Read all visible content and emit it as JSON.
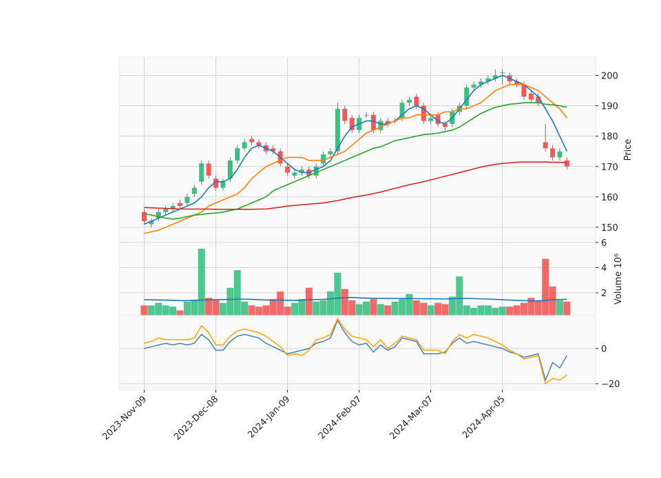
{
  "chart_data": [
    {
      "type": "candlestick",
      "ylabel": "Price",
      "ylim": [
        145,
        206
      ],
      "yticks": [
        150,
        160,
        170,
        180,
        190,
        200
      ],
      "grid": true,
      "up_color": "#3cbf84",
      "down_color": "#f05a5a",
      "x": [
        0,
        2,
        4,
        6,
        8,
        10,
        12,
        14,
        16,
        18,
        20,
        22,
        24,
        26,
        28,
        30,
        32,
        34,
        36,
        38,
        40,
        42,
        44,
        46,
        48,
        50,
        52,
        54,
        56,
        58,
        60,
        62,
        64,
        66,
        68,
        70,
        72,
        74,
        76,
        78,
        80,
        82,
        84,
        86,
        88,
        90,
        92,
        94,
        96,
        98,
        100,
        102,
        104,
        106,
        108,
        110,
        112,
        114,
        116,
        118
      ],
      "open": [
        155,
        151,
        153,
        155,
        156,
        158,
        158,
        161,
        165,
        171,
        166,
        163,
        166,
        172,
        176,
        179,
        178,
        177,
        176,
        175,
        170,
        167,
        168,
        169,
        167,
        171,
        174,
        175,
        189,
        186,
        182,
        187,
        187,
        182,
        185,
        185,
        186,
        191,
        193,
        190,
        185,
        187,
        184,
        184,
        188,
        190,
        196,
        197,
        198,
        199,
        201,
        200,
        198,
        197,
        194,
        193,
        178,
        176,
        173,
        172
      ],
      "high": [
        156,
        153,
        156,
        157,
        158,
        159,
        161,
        164,
        172,
        172,
        167,
        166,
        173,
        177,
        179,
        180,
        179,
        178,
        177,
        176,
        171,
        169,
        170,
        170,
        171,
        175,
        176,
        191,
        190,
        187,
        187,
        188,
        188,
        186,
        186,
        186,
        192,
        193,
        194,
        191,
        187,
        188,
        185,
        189,
        191,
        197,
        198,
        199,
        200,
        202,
        202,
        201,
        199,
        198,
        195,
        194,
        184,
        177,
        176,
        173
      ],
      "low": [
        151,
        150,
        152,
        154,
        155,
        156,
        157,
        160,
        164,
        166,
        162,
        162,
        165,
        171,
        175,
        177,
        176,
        174,
        174,
        170,
        167,
        166,
        167,
        166,
        166,
        170,
        173,
        174,
        184,
        181,
        181,
        186,
        181,
        181,
        183,
        184,
        185,
        190,
        189,
        184,
        184,
        183,
        182,
        183,
        187,
        189,
        195,
        196,
        197,
        198,
        197,
        197,
        196,
        192,
        191,
        190,
        175,
        172,
        172,
        169
      ],
      "close": [
        152,
        152,
        155,
        156,
        157,
        157,
        160,
        163,
        171,
        167,
        163,
        165,
        172,
        176,
        178,
        178,
        177,
        175,
        175,
        171,
        168,
        168,
        169,
        167,
        170,
        174,
        175,
        189,
        185,
        182,
        186,
        187,
        182,
        185,
        184,
        185,
        191,
        192,
        190,
        185,
        186,
        184,
        183,
        188,
        190,
        196,
        197,
        198,
        199,
        200,
        201,
        198,
        197,
        193,
        192,
        191,
        176,
        173,
        175,
        170
      ],
      "series": [
        {
          "color": "#1f77b4",
          "values": [
            151,
            152,
            153,
            154,
            155,
            156,
            157,
            158,
            160,
            163,
            165,
            165,
            166,
            169,
            173,
            176,
            177,
            176,
            175,
            173,
            171,
            169,
            168,
            168,
            169,
            170,
            172,
            176,
            180,
            183,
            184,
            185,
            185,
            184,
            184,
            185,
            187,
            189,
            190,
            189,
            187,
            185,
            184,
            186,
            189,
            192,
            195,
            197,
            198,
            199,
            200,
            199,
            198,
            197,
            195,
            193,
            189,
            185,
            180,
            175
          ]
        },
        {
          "color": "#ff7f0e",
          "values": [
            148,
            148.5,
            149,
            150,
            151,
            152,
            153,
            154,
            155,
            157,
            158,
            159,
            160,
            161,
            163,
            166,
            168,
            170,
            171,
            172,
            173,
            173,
            173,
            172,
            172,
            172,
            173,
            174,
            175,
            177,
            179,
            181,
            182,
            183,
            184,
            185,
            186,
            186,
            187,
            187,
            187,
            187,
            188,
            188,
            189,
            189,
            190,
            191,
            193,
            195,
            196,
            197,
            197,
            197,
            196,
            195,
            193,
            191,
            189,
            186
          ]
        },
        {
          "color": "#2ca02c",
          "values": [
            154.5,
            154,
            153.5,
            153,
            152.7,
            153,
            153.5,
            154,
            154.2,
            154.5,
            154.7,
            155,
            155.5,
            156,
            157,
            158,
            159,
            160,
            162,
            163,
            164,
            165,
            166,
            167,
            168,
            169,
            170,
            171,
            172,
            173,
            174,
            175,
            176,
            176.5,
            177.5,
            178.5,
            179,
            179.5,
            180,
            180.5,
            180.7,
            181,
            181.5,
            182,
            183,
            184.5,
            186,
            187.5,
            188.5,
            189.5,
            190,
            190.5,
            190.7,
            191,
            191,
            191,
            190.5,
            190.3,
            190,
            189.5
          ]
        },
        {
          "color": "#d62728",
          "values": [
            156.5,
            156.4,
            156.3,
            156.2,
            156.1,
            156,
            156,
            156,
            156,
            156,
            155.9,
            155.9,
            155.9,
            155.9,
            155.9,
            155.9,
            156,
            156,
            156.3,
            156.6,
            157,
            157.2,
            157.4,
            157.6,
            157.8,
            158,
            158.4,
            158.8,
            159.3,
            159.8,
            160.2,
            160.6,
            161.1,
            161.6,
            162.2,
            162.8,
            163.4,
            164,
            164.5,
            165,
            165.6,
            166.2,
            166.8,
            167.4,
            168,
            168.6,
            169.2,
            169.8,
            170.3,
            170.7,
            171,
            171.2,
            171.4,
            171.5,
            171.5,
            171.5,
            171.5,
            171.4,
            171.4,
            171.3
          ]
        }
      ]
    },
    {
      "type": "bar",
      "ylabel": "Volume  10⁶",
      "ylim": [
        0.2,
        6
      ],
      "yticks": [
        2,
        4,
        6
      ],
      "grid": true,
      "values": [
        1.0,
        1.0,
        1.2,
        1.0,
        0.9,
        0.6,
        1.3,
        1.4,
        5.5,
        1.6,
        1.4,
        1.2,
        2.4,
        3.8,
        1.3,
        1.0,
        0.9,
        1.0,
        1.5,
        2.1,
        0.9,
        1.2,
        1.5,
        2.4,
        1.3,
        1.4,
        2.1,
        3.6,
        2.3,
        1.4,
        1.1,
        1.3,
        1.5,
        1.1,
        1.0,
        1.3,
        1.5,
        1.9,
        1.4,
        1.2,
        1.0,
        1.2,
        1.1,
        1.7,
        3.3,
        1.0,
        0.8,
        1.0,
        1.0,
        0.8,
        0.9,
        0.9,
        1.0,
        1.2,
        1.6,
        1.4,
        4.7,
        2.5,
        1.4,
        1.3
      ],
      "series": [
        {
          "color": "#1f77b4",
          "values": [
            1.45,
            1.44,
            1.43,
            1.42,
            1.4,
            1.38,
            1.38,
            1.4,
            1.42,
            1.45,
            1.45,
            1.46,
            1.48,
            1.5,
            1.5,
            1.48,
            1.45,
            1.43,
            1.42,
            1.42,
            1.4,
            1.4,
            1.42,
            1.45,
            1.46,
            1.48,
            1.52,
            1.58,
            1.62,
            1.62,
            1.6,
            1.58,
            1.56,
            1.55,
            1.55,
            1.55,
            1.55,
            1.55,
            1.54,
            1.53,
            1.53,
            1.52,
            1.52,
            1.53,
            1.55,
            1.55,
            1.54,
            1.52,
            1.5,
            1.48,
            1.45,
            1.42,
            1.4,
            1.38,
            1.36,
            1.35,
            1.4,
            1.45,
            1.47,
            1.48
          ]
        }
      ]
    },
    {
      "type": "line",
      "ylim": [
        -23.5,
        18.8
      ],
      "yticks": [
        0,
        {
          "value": -20,
          "label": "−20"
        }
      ],
      "grid": true,
      "xlim": [
        -7,
        126
      ],
      "xticks": [
        {
          "value": 0,
          "label": "2023-Nov-09"
        },
        {
          "value": 20,
          "label": "2023-Dec-08"
        },
        {
          "value": 40,
          "label": "2024-Jan-09"
        },
        {
          "value": 60,
          "label": "2024-Feb-07"
        },
        {
          "value": 80,
          "label": "2024-Mar-07"
        },
        {
          "value": 100,
          "label": "2024-Apr-05"
        }
      ],
      "series": [
        {
          "color": "#4682b4",
          "values": [
            0,
            1,
            2,
            3,
            2,
            3,
            2,
            3,
            8,
            5,
            -1,
            -1,
            4,
            7,
            8,
            7,
            6,
            3,
            1,
            -1,
            -3,
            -2,
            -1,
            0,
            3,
            4,
            6,
            16,
            9,
            4,
            2,
            3,
            -2,
            2,
            -1,
            1,
            6,
            5,
            4,
            -3,
            -3,
            -3,
            -2,
            3,
            6,
            3,
            4,
            3,
            2,
            1,
            0,
            -2,
            -3,
            -5,
            -4,
            -3,
            -18,
            -8,
            -11,
            -4
          ]
        },
        {
          "color": "#ffa500",
          "values": [
            3,
            4,
            6,
            5,
            5,
            5,
            5,
            6,
            13,
            9,
            2,
            2,
            7,
            10,
            11,
            10,
            9,
            7,
            4,
            1,
            -4,
            -3,
            -4,
            -1,
            5,
            6,
            8,
            17,
            11,
            7,
            6,
            5,
            1,
            5,
            0,
            3,
            7,
            6,
            5,
            -1,
            -1,
            -1,
            -3,
            4,
            8,
            6,
            8,
            7,
            6,
            4,
            2,
            -1,
            -3,
            -6,
            -5,
            -4,
            -20,
            -17,
            -18,
            -15
          ]
        }
      ]
    }
  ]
}
